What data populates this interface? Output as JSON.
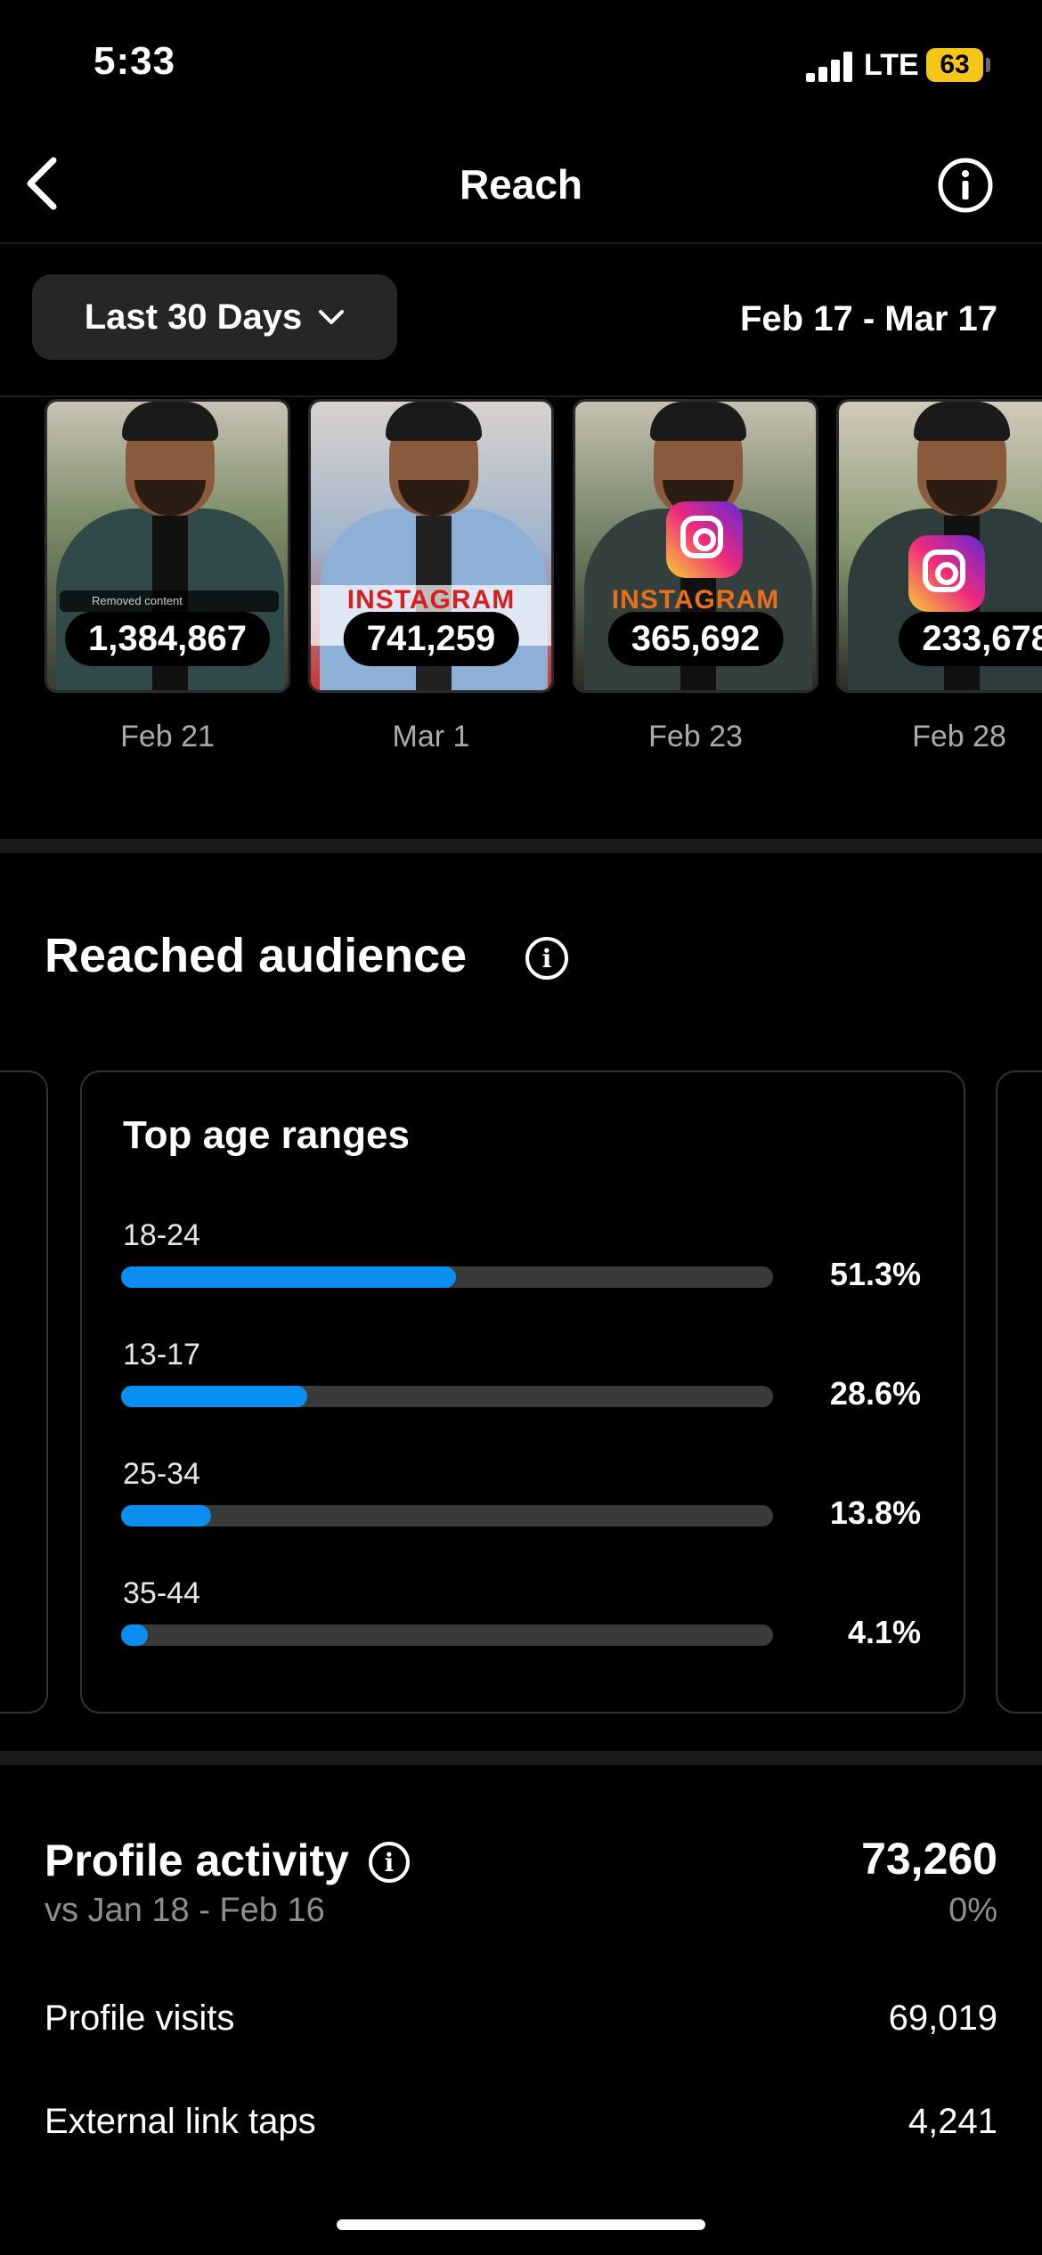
{
  "status_bar": {
    "time": "5:33",
    "network": "LTE",
    "battery": "63"
  },
  "header": {
    "title": "Reach"
  },
  "filter": {
    "range_label": "Last 30 Days",
    "date_range": "Feb 17 - Mar 17"
  },
  "top_content": [
    {
      "count": "1,384,867",
      "date": "Feb 21",
      "overlay": "Removed content"
    },
    {
      "count": "741,259",
      "date": "Mar 1",
      "banner": "INSTAGRAM VIRAL"
    },
    {
      "count": "365,692",
      "date": "Feb 23",
      "banner": "INSTAGRAM"
    },
    {
      "count": "233,678",
      "date": "Feb 28"
    }
  ],
  "reached_audience": {
    "title": "Reached audience",
    "card_title": "Top age ranges",
    "age_ranges": [
      {
        "label": "18-24",
        "percent": "51.3%",
        "value": 51.3
      },
      {
        "label": "13-17",
        "percent": "28.6%",
        "value": 28.6
      },
      {
        "label": "25-34",
        "percent": "13.8%",
        "value": 13.8
      },
      {
        "label": "35-44",
        "percent": "4.1%",
        "value": 4.1
      }
    ]
  },
  "profile_activity": {
    "title": "Profile activity",
    "comparison": "vs Jan 18 - Feb 16",
    "total": "73,260",
    "change": "0%",
    "rows": [
      {
        "label": "Profile visits",
        "value": "69,019"
      },
      {
        "label": "External link taps",
        "value": "4,241"
      }
    ]
  }
}
